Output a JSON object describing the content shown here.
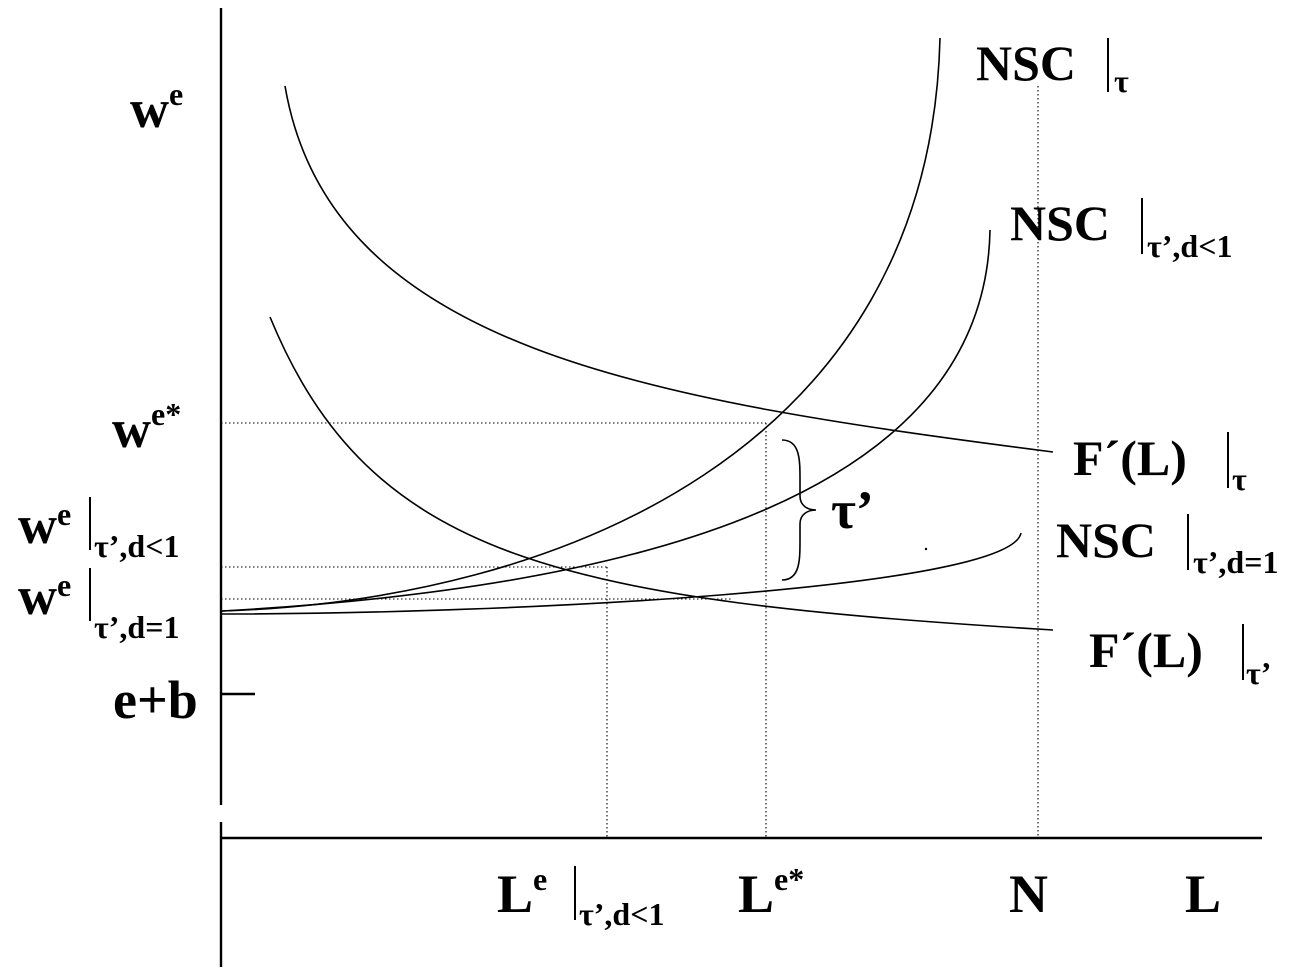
{
  "y_axis": {
    "w": "w",
    "e": "e",
    "w_star_base": "w",
    "w_star_sup": "e*",
    "w_t_base": "w",
    "w_t_sup": "e",
    "w_t_sub": "τ’,d<1",
    "w_d_base": "w",
    "w_d_sup": "e",
    "w_d_sub": "τ’,d=1",
    "eb": "e+b"
  },
  "x_axis": {
    "le_base": "L",
    "le_sup": "e",
    "le_sub": "τ’,d<1",
    "lestar_base": "L",
    "lestar_sup": "e*",
    "n": "N",
    "l": "L"
  },
  "curves": {
    "nsc_tau": "NSC",
    "nsc_tau_sub": "τ",
    "nsc_t_dlt1": "NSC",
    "nsc_t_dlt1_sub": "τ’,d<1",
    "nsc_t_deq1": "NSC",
    "nsc_t_deq1_sub": "τ’,d=1",
    "f_tau": "F´(L)",
    "f_tau_sub": "τ",
    "f_tprime": "F´(L)",
    "f_tprime_sub": "τ’"
  },
  "gap_label": "τ’"
}
